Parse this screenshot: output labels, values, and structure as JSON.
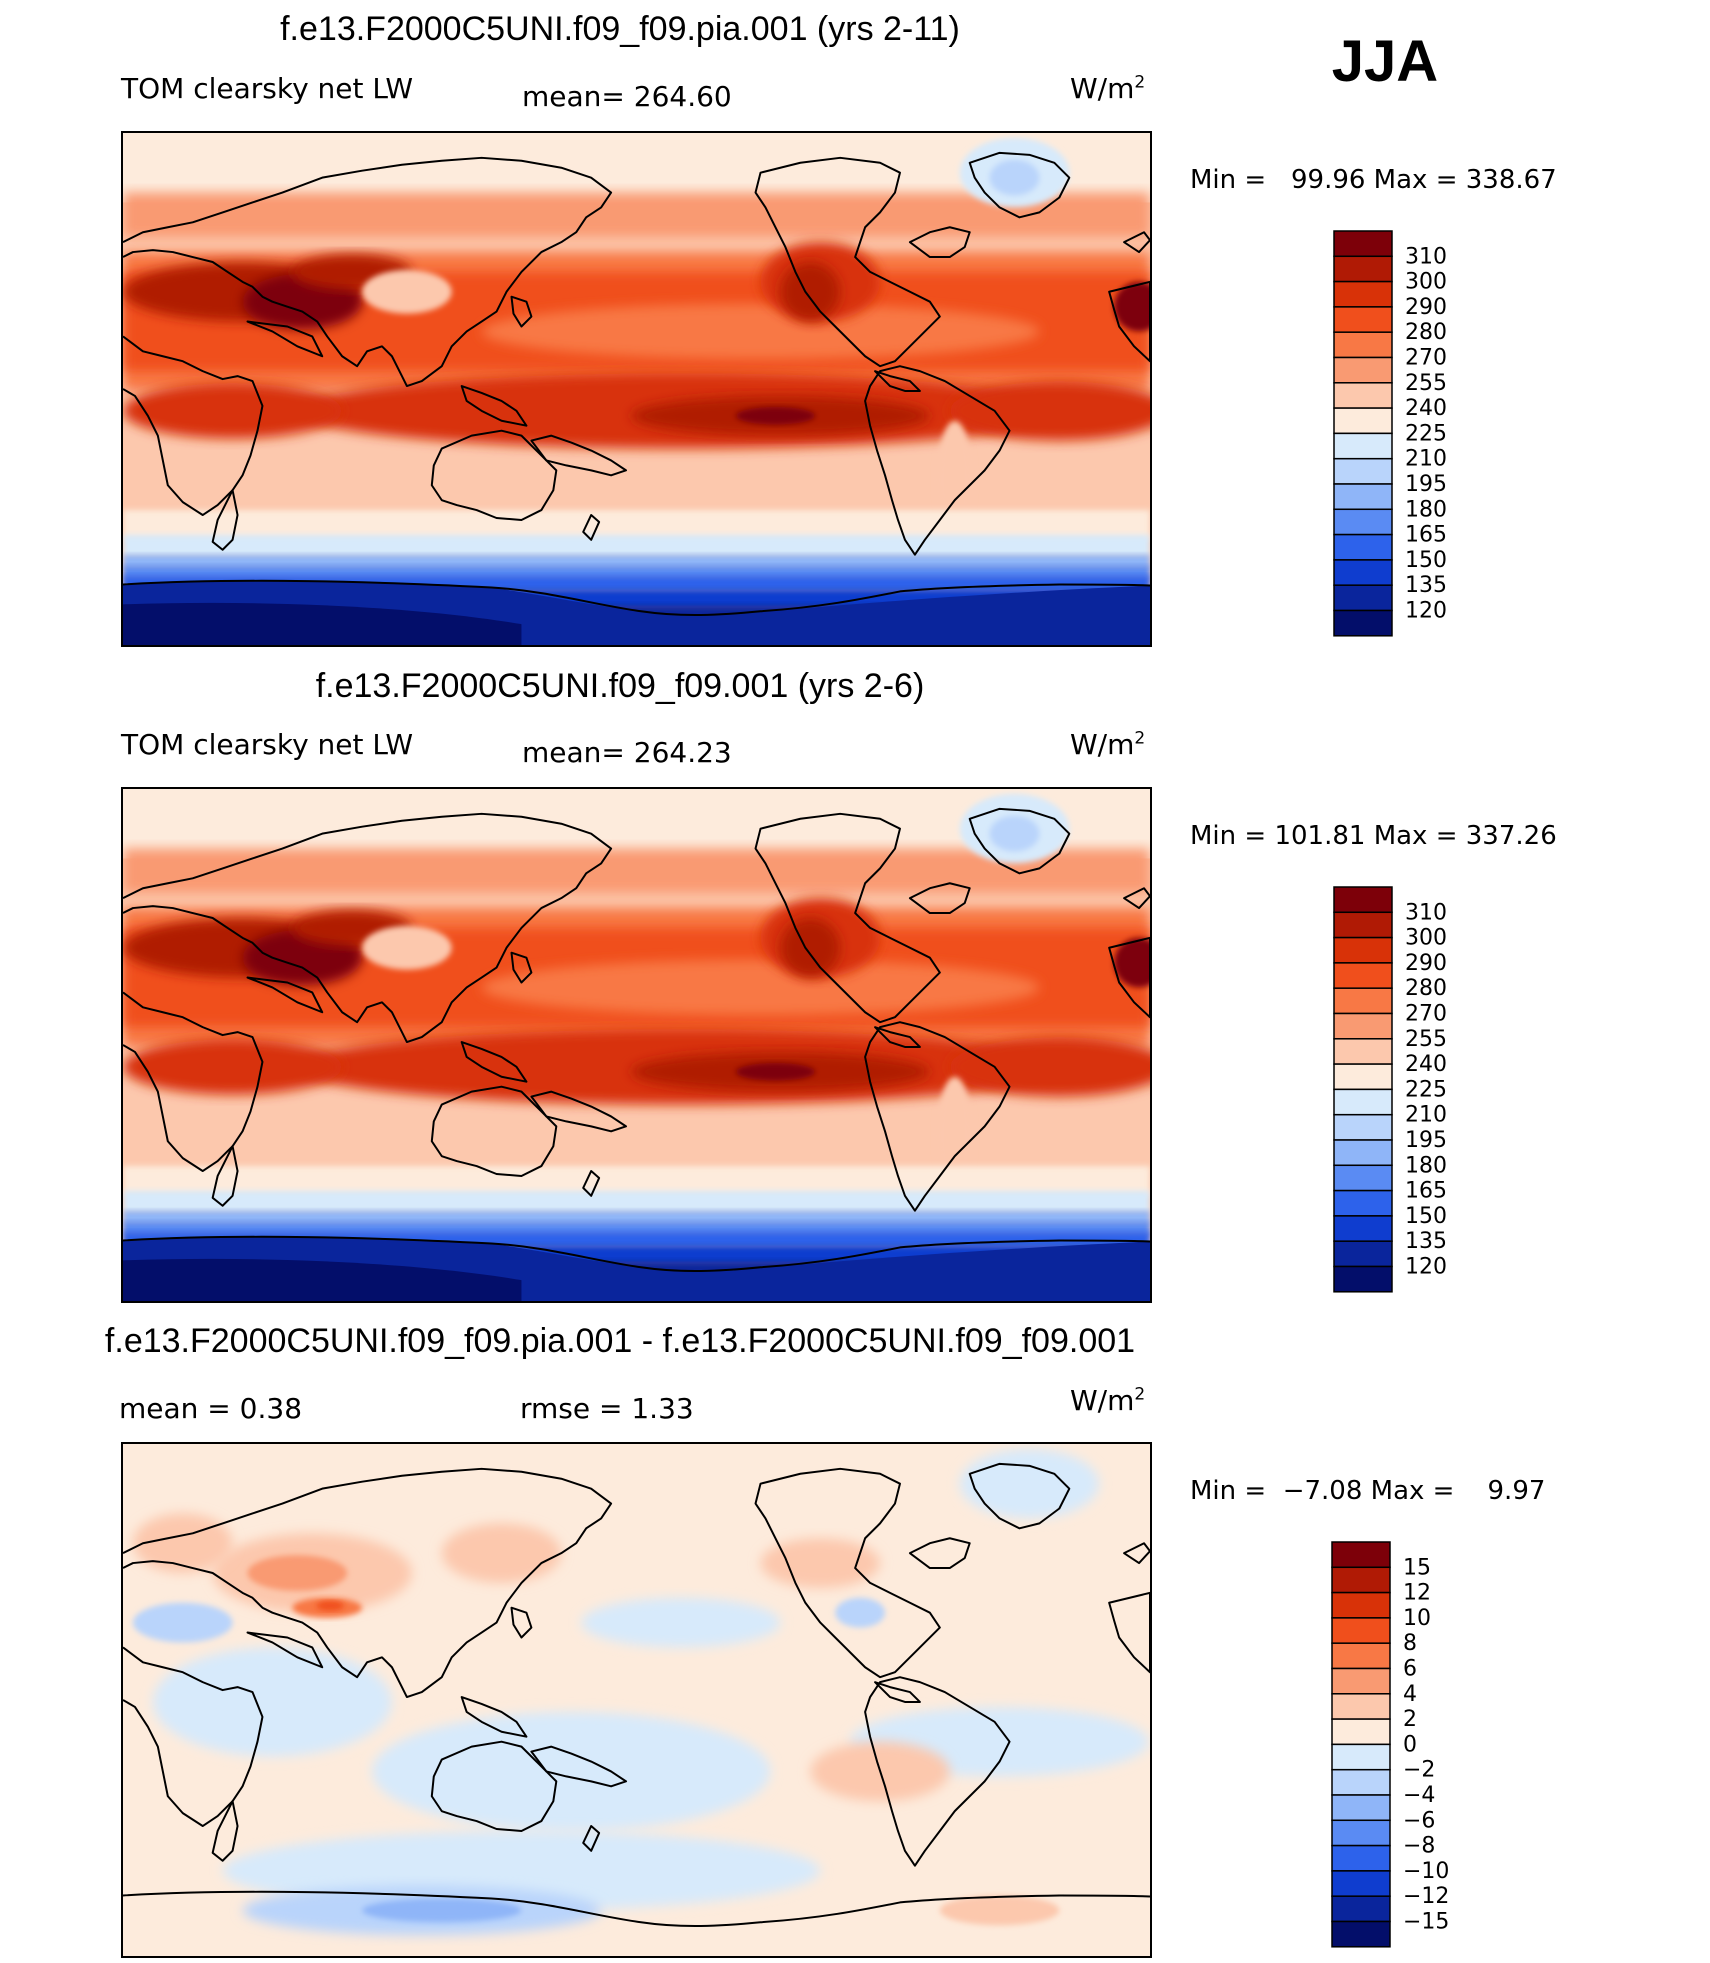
{
  "season": "JJA",
  "panels": [
    {
      "title": "f.e13.F2000C5UNI.f09_f09.pia.001 (yrs 2-11)",
      "left_label": "TOM clearsky net LW",
      "center_label": "mean= 264.60",
      "units_base": "W/m",
      "units_sup": "2",
      "minmax": "Min =   99.96 Max = 338.67",
      "colorbar": {
        "levels": [
          "310",
          "300",
          "290",
          "280",
          "270",
          "255",
          "240",
          "225",
          "210",
          "195",
          "180",
          "165",
          "150",
          "135",
          "120"
        ],
        "colors": [
          "#7d0009",
          "#b01a05",
          "#d83208",
          "#f04f1c",
          "#f87845",
          "#f99a72",
          "#fcc8ad",
          "#fdebdc",
          "#d7eafb",
          "#b9d4fb",
          "#8fb5f8",
          "#5a8bf3",
          "#2d62eb",
          "#0f3dcf",
          "#0a259c",
          "#030e6a"
        ]
      }
    },
    {
      "title": "f.e13.F2000C5UNI.f09_f09.001 (yrs 2-6)",
      "left_label": "TOM clearsky net LW",
      "center_label": "mean= 264.23",
      "units_base": "W/m",
      "units_sup": "2",
      "minmax": "Min = 101.81 Max = 337.26",
      "colorbar": {
        "levels": [
          "310",
          "300",
          "290",
          "280",
          "270",
          "255",
          "240",
          "225",
          "210",
          "195",
          "180",
          "165",
          "150",
          "135",
          "120"
        ],
        "colors": [
          "#7d0009",
          "#b01a05",
          "#d83208",
          "#f04f1c",
          "#f87845",
          "#f99a72",
          "#fcc8ad",
          "#fdebdc",
          "#d7eafb",
          "#b9d4fb",
          "#8fb5f8",
          "#5a8bf3",
          "#2d62eb",
          "#0f3dcf",
          "#0a259c",
          "#030e6a"
        ]
      }
    },
    {
      "title": "f.e13.F2000C5UNI.f09_f09.pia.001 - f.e13.F2000C5UNI.f09_f09.001",
      "left_label": "mean =    0.38",
      "center_label": "rmse =    1.33",
      "units_base": "W/m",
      "units_sup": "2",
      "minmax": "Min =  −7.08 Max =    9.97",
      "colorbar": {
        "levels": [
          "15",
          "12",
          "10",
          "8",
          "6",
          "4",
          "2",
          "0",
          "−2",
          "−4",
          "−6",
          "−8",
          "−10",
          "−12",
          "−15"
        ],
        "colors": [
          "#7d0009",
          "#b01a05",
          "#d83208",
          "#f04f1c",
          "#f87845",
          "#f99a72",
          "#fcc8ad",
          "#fdebdc",
          "#d7eafb",
          "#b9d4fb",
          "#8fb5f8",
          "#5a8bf3",
          "#2d62eb",
          "#0f3dcf",
          "#0a259c",
          "#030e6a"
        ]
      }
    }
  ]
}
